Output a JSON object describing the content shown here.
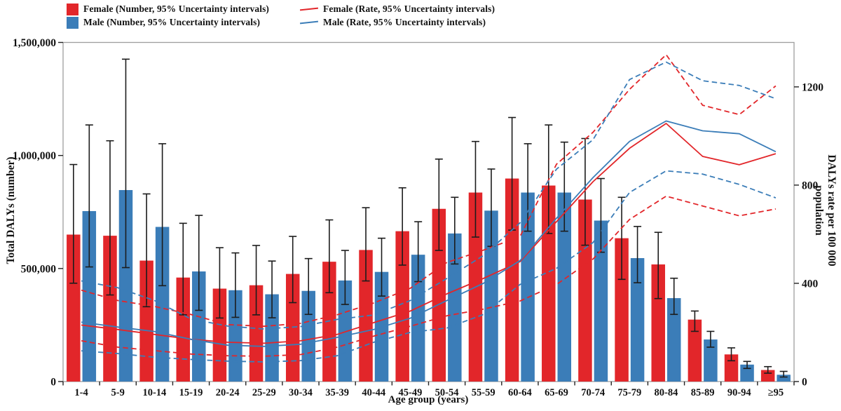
{
  "legend": {
    "female_number": "Female (Number, 95% Uncertainty intervals)",
    "male_number": "Male (Number, 95% Uncertainty intervals)",
    "female_rate": "Female (Rate, 95% Uncertainty intervals)",
    "male_rate": "Male (Rate, 95% Uncertainty intervals)"
  },
  "colors": {
    "female": "#e2262a",
    "male": "#3b7db8",
    "error_bar": "#1c1c1c",
    "frame": "#9e9e9e",
    "tick": "#222222"
  },
  "axes": {
    "left": {
      "title": "Total DALYs (number)",
      "tick_values": [
        0,
        500000,
        1000000,
        1500000
      ],
      "tick_labels": [
        "0",
        "500,000",
        "1,000,000",
        "1,500,000"
      ],
      "range": [
        0,
        1500000
      ]
    },
    "right": {
      "title_line1": "DALYs rate per 100 000",
      "title_line2": "population",
      "tick_values": [
        0,
        400,
        800,
        1200
      ],
      "tick_labels": [
        "0",
        "400",
        "800",
        "1200"
      ],
      "range": [
        0,
        1381
      ]
    },
    "x": {
      "title": "Age group (years)"
    }
  },
  "chart_data": {
    "type": "bar",
    "subtype": "grouped bars with error bars + dual-axis rate lines (solid) and 95% UI (dashed)",
    "categories": [
      "1-4",
      "5-9",
      "10-14",
      "15-19",
      "20-24",
      "25-29",
      "30-34",
      "35-39",
      "40-44",
      "45-49",
      "50-54",
      "55-59",
      "60-64",
      "65-69",
      "70-74",
      "75-79",
      "80-84",
      "85-89",
      "90-94",
      "≥95"
    ],
    "series": [
      {
        "name": "Female (Number)",
        "kind": "bar",
        "axis": "left",
        "color": "#e2262a",
        "values": [
          650000,
          645000,
          535000,
          460000,
          411000,
          426000,
          476000,
          530000,
          582000,
          665000,
          764000,
          836000,
          898000,
          867000,
          805000,
          634000,
          518000,
          274000,
          120000,
          51000
        ],
        "ui_low": [
          435000,
          383000,
          331000,
          295000,
          281000,
          295000,
          349000,
          393000,
          445000,
          515000,
          580000,
          639000,
          670000,
          655000,
          603000,
          452000,
          367000,
          222000,
          92000,
          37000
        ],
        "ui_high": [
          960000,
          1065000,
          830000,
          700000,
          592000,
          602000,
          642000,
          715000,
          769000,
          857000,
          984000,
          1062000,
          1168000,
          1135000,
          1075000,
          815000,
          660000,
          312000,
          149000,
          66000
        ]
      },
      {
        "name": "Male (Number)",
        "kind": "bar",
        "axis": "left",
        "color": "#3b7db8",
        "values": [
          754000,
          847000,
          684000,
          487000,
          404000,
          386000,
          401000,
          447000,
          485000,
          561000,
          655000,
          756000,
          836000,
          836000,
          712000,
          546000,
          369000,
          186000,
          75000,
          30000
        ],
        "ui_low": [
          507000,
          504000,
          424000,
          315000,
          284000,
          282000,
          297000,
          341000,
          378000,
          442000,
          520000,
          598000,
          665000,
          665000,
          572000,
          437000,
          297000,
          152000,
          58000,
          20000
        ],
        "ui_high": [
          1135000,
          1426000,
          1052000,
          735000,
          569000,
          533000,
          544000,
          580000,
          634000,
          707000,
          815000,
          940000,
          1052000,
          1059000,
          898000,
          686000,
          457000,
          222000,
          89000,
          45000
        ]
      },
      {
        "name": "Female (Rate)",
        "kind": "line",
        "style": "solid",
        "axis": "right",
        "color": "#e2262a",
        "values": [
          230,
          212,
          192,
          172,
          160,
          156,
          166,
          192,
          240,
          287,
          357,
          420,
          488,
          651,
          814,
          950,
          1051,
          917,
          883,
          928
        ]
      },
      {
        "name": "Male (Rate)",
        "kind": "line",
        "style": "solid",
        "axis": "right",
        "color": "#3b7db8",
        "values": [
          242,
          222,
          204,
          172,
          148,
          143,
          152,
          180,
          212,
          258,
          330,
          400,
          492,
          665,
          831,
          978,
          1061,
          1021,
          1009,
          936
        ]
      },
      {
        "name": "Female (Rate upper 95% UI)",
        "kind": "line",
        "style": "dashed",
        "axis": "right",
        "color": "#e2262a",
        "values": [
          372,
          330,
          306,
          273,
          232,
          225,
          237,
          272,
          320,
          380,
          485,
          535,
          590,
          885,
          1015,
          1190,
          1331,
          1125,
          1087,
          1204
        ]
      },
      {
        "name": "Female (Rate lower 95% UI)",
        "kind": "line",
        "style": "dashed",
        "axis": "right",
        "color": "#e2262a",
        "values": [
          166,
          140,
          126,
          112,
          105,
          103,
          110,
          140,
          185,
          225,
          268,
          295,
          328,
          395,
          499,
          660,
          755,
          715,
          675,
          703
        ]
      },
      {
        "name": "Male (Rate upper 95% UI)",
        "kind": "line",
        "style": "dashed",
        "axis": "right",
        "color": "#3b7db8",
        "values": [
          410,
          382,
          330,
          255,
          226,
          214,
          224,
          253,
          271,
          330,
          420,
          513,
          646,
          865,
          985,
          1230,
          1301,
          1225,
          1206,
          1152
        ]
      },
      {
        "name": "Male (Rate lower 95% UI)",
        "kind": "line",
        "style": "dashed",
        "axis": "right",
        "color": "#3b7db8",
        "values": [
          125,
          114,
          99,
          90,
          83,
          80,
          85,
          105,
          160,
          200,
          218,
          273,
          395,
          461,
          566,
          770,
          858,
          845,
          803,
          748
        ]
      }
    ]
  }
}
